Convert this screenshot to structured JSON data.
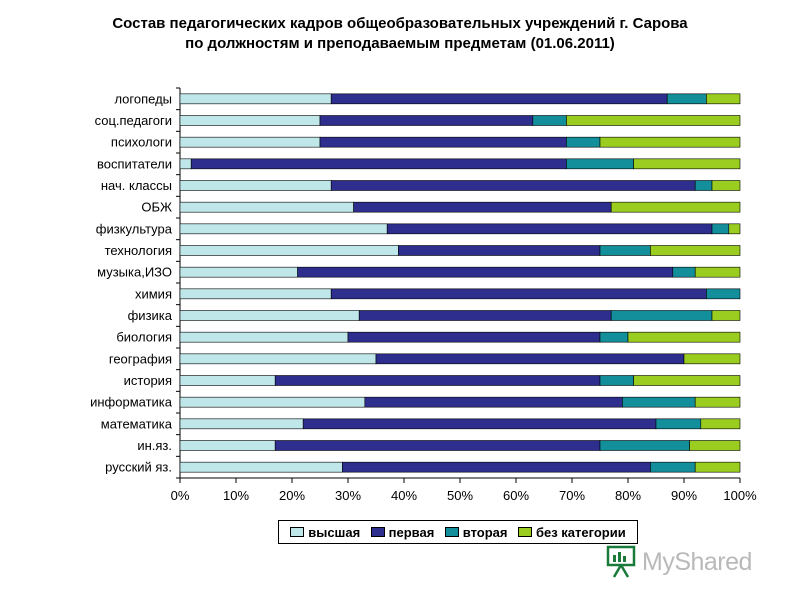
{
  "title": {
    "line1": "Состав педагогических кадров общеобразовательных учреждений г. Сарова",
    "line2": "по должностям и преподаваемым предметам (01.06.2011)"
  },
  "colors": {
    "высшая": "#bfe6e9",
    "первая": "#2e2e8f",
    "вторая": "#138e9b",
    "без категории": "#9acd1f"
  },
  "watermark": {
    "text": "MyShared",
    "icon": "presentation-board-icon"
  },
  "chart_data": {
    "type": "bar",
    "orientation": "horizontal",
    "stacked": "percent",
    "categories": [
      "логопеды",
      "соц.педагоги",
      "психологи",
      "воспитатели",
      "нач. классы",
      "ОБЖ",
      "физкультура",
      "технология",
      "музыка,ИЗО",
      "химия",
      "физика",
      "биология",
      "география",
      "история",
      "информатика",
      "математика",
      "ин.яз.",
      "русский яз."
    ],
    "series": [
      {
        "name": "высшая",
        "values": [
          27,
          25,
          25,
          2,
          27,
          31,
          37,
          39,
          21,
          27,
          32,
          30,
          35,
          17,
          33,
          22,
          17,
          29
        ]
      },
      {
        "name": "первая",
        "values": [
          60,
          38,
          44,
          67,
          65,
          46,
          58,
          36,
          67,
          67,
          45,
          45,
          55,
          58,
          46,
          63,
          58,
          55
        ]
      },
      {
        "name": "вторая",
        "values": [
          7,
          6,
          6,
          12,
          3,
          0,
          3,
          9,
          4,
          6,
          18,
          5,
          0,
          6,
          13,
          8,
          16,
          8
        ]
      },
      {
        "name": "без категории",
        "values": [
          6,
          31,
          25,
          19,
          5,
          23,
          2,
          16,
          8,
          0,
          5,
          20,
          10,
          19,
          8,
          7,
          9,
          8
        ]
      }
    ],
    "xticks": [
      "0%",
      "10%",
      "20%",
      "30%",
      "40%",
      "50%",
      "60%",
      "70%",
      "80%",
      "90%",
      "100%"
    ],
    "xlim": [
      0,
      100
    ],
    "grid": false,
    "legend_position": "bottom"
  }
}
